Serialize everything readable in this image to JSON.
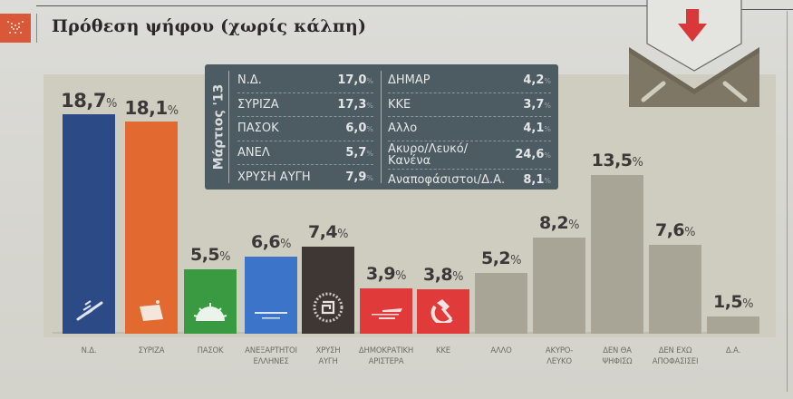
{
  "header": {
    "title": "Πρόθεση ψήφου (χωρίς κάλπη)",
    "icon": "grid-pattern-icon"
  },
  "inset_table": {
    "period_label": "Μάρτιος '13",
    "left": [
      {
        "party": "Ν.Δ.",
        "value": "17,0"
      },
      {
        "party": "ΣΥΡΙΖΑ",
        "value": "17,3"
      },
      {
        "party": "ΠΑΣΟΚ",
        "value": "6,0"
      },
      {
        "party": "ΑΝΕΛ",
        "value": "5,7"
      },
      {
        "party": "ΧΡΥΣΗ ΑΥΓΗ",
        "value": "7,9"
      }
    ],
    "right": [
      {
        "party": "ΔΗΜΑΡ",
        "value": "4,2"
      },
      {
        "party": "ΚΚΕ",
        "value": "3,7"
      },
      {
        "party": "Αλλο",
        "value": "4,1"
      },
      {
        "party": "Ακυρο/Λευκό/ Κανένα",
        "value": "24,6"
      },
      {
        "party": "Αναποφάσιστοι/Δ.Α.",
        "value": "8,1"
      }
    ],
    "pct_symbol": "%"
  },
  "envelope_icon": "ballot-envelope-down-arrow-icon",
  "colors": {
    "nd": "#2b4a86",
    "syriza": "#e2692f",
    "pasok": "#3a9a42",
    "anel": "#3b74c9",
    "xa": "#3f3733",
    "dimar": "#e03a3a",
    "kke": "#e03a3a",
    "other": "#a9a596",
    "inset_bg": "#4d5b63",
    "title_icon": "#d9583a"
  },
  "bars": [
    {
      "key": "nd",
      "value_label": "18,7",
      "pct": "%",
      "category": "Ν.Δ.",
      "category_line2": "",
      "icon": "torch-hand-icon"
    },
    {
      "key": "syriza",
      "value_label": "18,1",
      "pct": "%",
      "category": "ΣΥΡΙΖΑ",
      "category_line2": "",
      "icon": "flag-icon"
    },
    {
      "key": "pasok",
      "value_label": "5,5",
      "pct": "%",
      "category": "ΠΑΣΟΚ",
      "category_line2": "",
      "icon": "rising-sun-icon"
    },
    {
      "key": "anel",
      "value_label": "6,6",
      "pct": "%",
      "category": "ΑΝΕΞΑΡΤΗΤΟΙ",
      "category_line2": "ΕΛΛΗΝΕΣ",
      "icon": "anel-logo-icon"
    },
    {
      "key": "xa",
      "value_label": "7,4",
      "pct": "%",
      "category": "ΧΡΥΣΗ",
      "category_line2": "ΑΥΓΗ",
      "icon": "meander-wreath-icon"
    },
    {
      "key": "dimar",
      "value_label": "3,9",
      "pct": "%",
      "category": "ΔΗΜΟΚΡΑΤΙΚΗ",
      "category_line2": "ΑΡΙΣΤΕΡΑ",
      "icon": "dimar-logo-icon"
    },
    {
      "key": "kke",
      "value_label": "3,8",
      "pct": "%",
      "category": "ΚΚΕ",
      "category_line2": "",
      "icon": "hammer-sickle-icon"
    },
    {
      "key": "other",
      "value_label": "5,2",
      "pct": "%",
      "category": "ΑΛΛΟ",
      "category_line2": "",
      "icon": ""
    },
    {
      "key": "other",
      "value_label": "8,2",
      "pct": "%",
      "category": "ΑΚΥΡΟ-",
      "category_line2": "ΛΕΥΚΟ",
      "icon": ""
    },
    {
      "key": "other",
      "value_label": "13,5",
      "pct": "%",
      "category": "ΔΕΝ ΘΑ",
      "category_line2": "ΨΗΦΙΣΩ",
      "icon": ""
    },
    {
      "key": "other",
      "value_label": "7,6",
      "pct": "%",
      "category": "ΔΕΝ ΕΧΩ",
      "category_line2": "ΑΠΟΦΑΣΙΣΕΙ",
      "icon": ""
    },
    {
      "key": "other",
      "value_label": "1,5",
      "pct": "%",
      "category": "Δ.Α.",
      "category_line2": "",
      "icon": ""
    }
  ],
  "chart_data": {
    "type": "bar",
    "title": "Πρόθεση ψήφου (χωρίς κάλπη)",
    "categories": [
      "Ν.Δ.",
      "ΣΥΡΙΖΑ",
      "ΠΑΣΟΚ",
      "ΑΝΕΞΑΡΤΗΤΟΙ ΕΛΛΗΝΕΣ",
      "ΧΡΥΣΗ ΑΥΓΗ",
      "ΔΗΜΟΚΡΑΤΙΚΗ ΑΡΙΣΤΕΡΑ",
      "ΚΚΕ",
      "ΑΛΛΟ",
      "ΑΚΥΡΟ-ΛΕΥΚΟ",
      "ΔΕΝ ΘΑ ΨΗΦΙΣΩ",
      "ΔΕΝ ΕΧΩ ΑΠΟΦΑΣΙΣΕΙ",
      "Δ.Α."
    ],
    "values": [
      18.7,
      18.1,
      5.5,
      6.6,
      7.4,
      3.9,
      3.8,
      5.2,
      8.2,
      13.5,
      7.6,
      1.5
    ],
    "unit": "%",
    "xlabel": "",
    "ylabel": "",
    "ylim": [
      0,
      20
    ],
    "grid": false,
    "legend": "none",
    "inset_table": {
      "title": "Μάρτιος '13",
      "rows": [
        [
          "Ν.Δ.",
          17.0
        ],
        [
          "ΣΥΡΙΖΑ",
          17.3
        ],
        [
          "ΠΑΣΟΚ",
          6.0
        ],
        [
          "ΑΝΕΛ",
          5.7
        ],
        [
          "ΧΡΥΣΗ ΑΥΓΗ",
          7.9
        ],
        [
          "ΔΗΜΑΡ",
          4.2
        ],
        [
          "ΚΚΕ",
          3.7
        ],
        [
          "Αλλο",
          4.1
        ],
        [
          "Ακυρο/Λευκό/Κανένα",
          24.6
        ],
        [
          "Αναποφάσιστοι/Δ.Α.",
          8.1
        ]
      ]
    }
  }
}
